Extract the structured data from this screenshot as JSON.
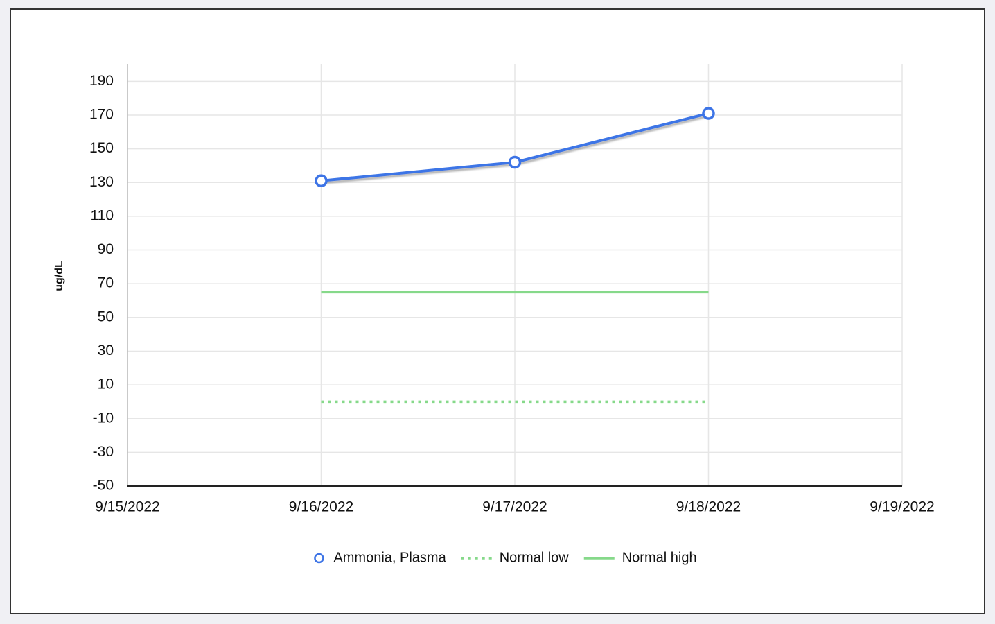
{
  "chart_data": {
    "type": "line",
    "y_label": "ug/dL",
    "x": [
      "9/16/2022",
      "9/17/2022",
      "9/18/2022"
    ],
    "xlim": [
      "9/15/2022",
      "9/19/2022"
    ],
    "xticks": [
      "9/15/2022",
      "9/16/2022",
      "9/17/2022",
      "9/18/2022",
      "9/19/2022"
    ],
    "ylim": [
      -50,
      200
    ],
    "yticks": [
      -50,
      -30,
      -10,
      10,
      30,
      50,
      70,
      90,
      110,
      130,
      150,
      170,
      190
    ],
    "grid": true,
    "legend": "bottom",
    "series": [
      {
        "name": "Ammonia, Plasma",
        "color": "#3d74e6",
        "values": [
          131,
          142,
          171
        ],
        "marker": true,
        "dash": "solid"
      },
      {
        "name": "Normal low",
        "color": "#86d98a",
        "values": [
          0,
          0,
          0
        ],
        "marker": false,
        "dash": "dotted"
      },
      {
        "name": "Normal high",
        "color": "#86d98a",
        "values": [
          65,
          65,
          65
        ],
        "marker": false,
        "dash": "solid"
      }
    ]
  }
}
